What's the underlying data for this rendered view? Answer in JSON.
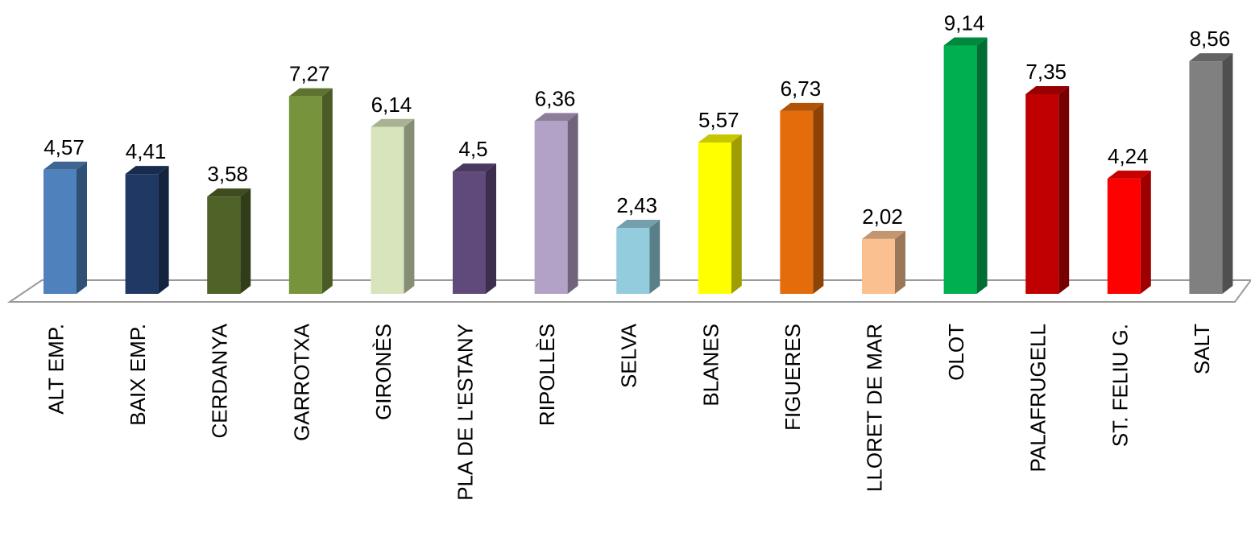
{
  "chart_data": {
    "type": "bar",
    "style": "3d-column",
    "categories": [
      "ALT EMP.",
      "BAIX EMP.",
      "CERDANYA",
      "GARROTXA",
      "GIRONÈS",
      "PLA DE L'ESTANY",
      "RIPOLLÈS",
      "SELVA",
      "BLANES",
      "FIGUERES",
      "LLORET DE MAR",
      "OLOT",
      "PALAFRUGELL",
      "ST. FELIU G.",
      "SALT"
    ],
    "values": [
      4.57,
      4.41,
      3.58,
      7.27,
      6.14,
      4.5,
      6.36,
      2.43,
      5.57,
      6.73,
      2.02,
      9.14,
      7.35,
      4.24,
      8.56
    ],
    "value_labels": [
      "4,57",
      "4,41",
      "3,58",
      "7,27",
      "6,14",
      "4,5",
      "6,36",
      "2,43",
      "5,57",
      "6,73",
      "2,02",
      "9,14",
      "7,35",
      "4,24",
      "8,56"
    ],
    "colors": [
      "#4f81bd",
      "#1f3864",
      "#4f6228",
      "#77933c",
      "#d7e4bc",
      "#604a7b",
      "#b3a2c7",
      "#93cddd",
      "#ffff00",
      "#e46c0a",
      "#fac090",
      "#00b050",
      "#c00000",
      "#ff0000",
      "#808080"
    ],
    "title": "",
    "xlabel": "",
    "ylabel": "",
    "ylim": [
      0,
      10
    ],
    "grid": false,
    "legend": "none"
  }
}
